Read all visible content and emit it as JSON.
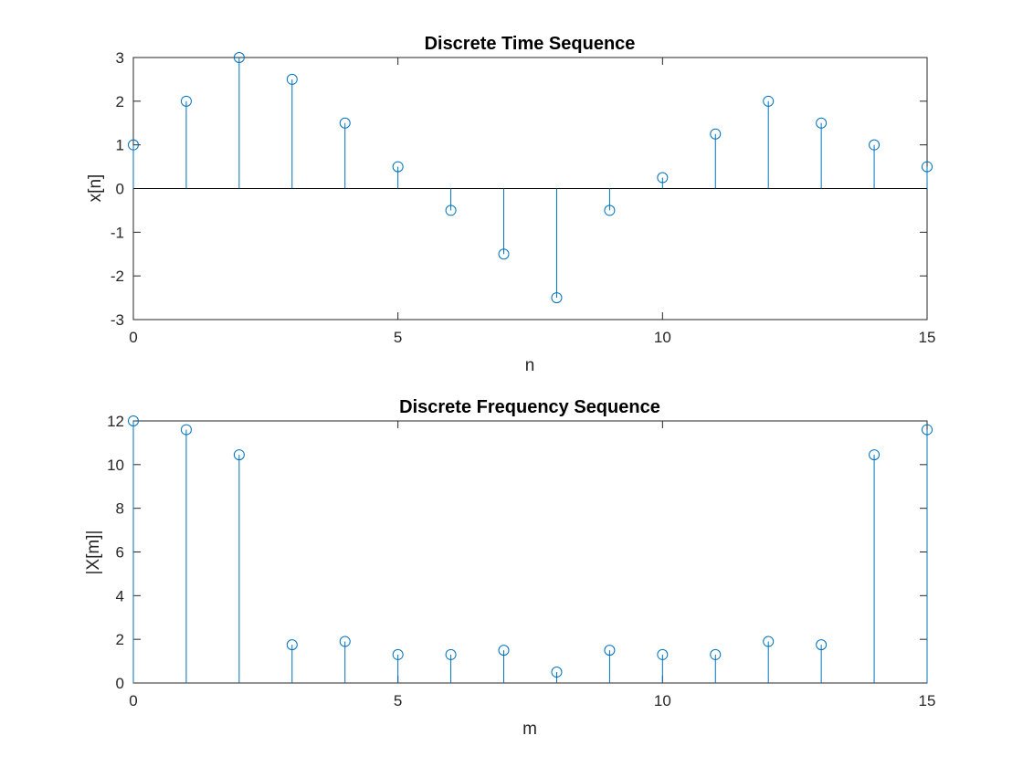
{
  "colors": {
    "series": "#0072BD",
    "axes": "#262626",
    "background": "#ffffff"
  },
  "chart_data": [
    {
      "type": "stem",
      "title": "Discrete Time Sequence",
      "xlabel": "n",
      "ylabel": "x[n]",
      "xlim": [
        0,
        15
      ],
      "ylim": [
        -3,
        3
      ],
      "xticks": [
        0,
        5,
        10,
        15
      ],
      "yticks": [
        -3,
        -2,
        -1,
        0,
        1,
        2,
        3
      ],
      "grid": false,
      "marker": "open-circle",
      "x": [
        0,
        1,
        2,
        3,
        4,
        5,
        6,
        7,
        8,
        9,
        10,
        11,
        12,
        13,
        14,
        15
      ],
      "values": [
        1,
        2,
        3,
        2.5,
        1.5,
        0.5,
        -0.5,
        -1.5,
        -2.5,
        -0.5,
        0.25,
        1.25,
        2,
        1.5,
        1,
        0.5
      ]
    },
    {
      "type": "stem",
      "title": "Discrete Frequency Sequence",
      "xlabel": "m",
      "ylabel": "|X[m]|",
      "xlim": [
        0,
        15
      ],
      "ylim": [
        0,
        12
      ],
      "xticks": [
        0,
        5,
        10,
        15
      ],
      "yticks": [
        0,
        2,
        4,
        6,
        8,
        10,
        12
      ],
      "grid": false,
      "marker": "open-circle",
      "x": [
        0,
        1,
        2,
        3,
        4,
        5,
        6,
        7,
        8,
        9,
        10,
        11,
        12,
        13,
        14,
        15
      ],
      "values": [
        12,
        11.6,
        10.45,
        1.75,
        1.9,
        1.3,
        1.3,
        1.5,
        0.5,
        1.5,
        1.3,
        1.3,
        1.9,
        1.75,
        10.45,
        11.6
      ]
    }
  ]
}
